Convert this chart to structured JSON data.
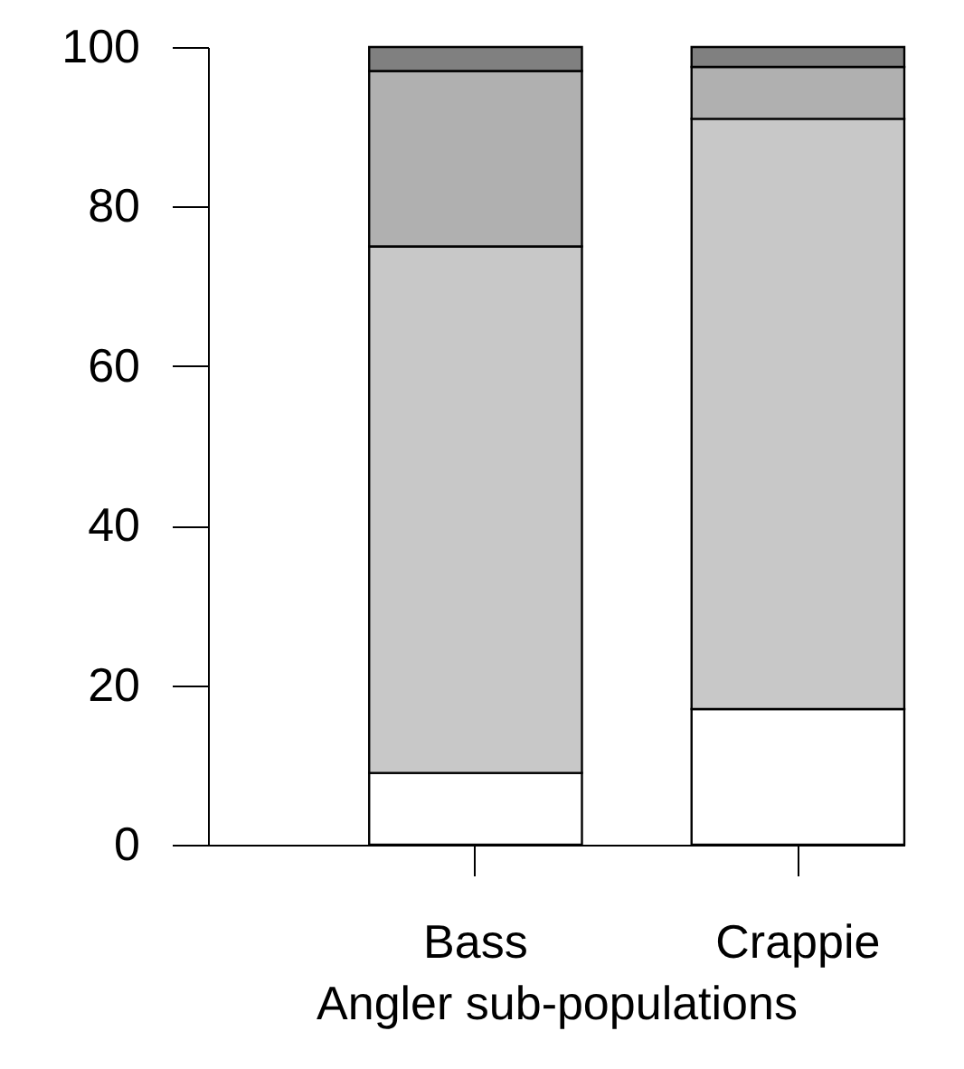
{
  "chart_data": {
    "type": "bar",
    "stacked": true,
    "xlabel": "Angler sub-populations",
    "categories": [
      "Bass",
      "Crappie"
    ],
    "series": [
      {
        "color": "#ffffff",
        "values": [
          9,
          17
        ]
      },
      {
        "color": "#c8c8c8",
        "values": [
          66,
          74
        ]
      },
      {
        "color": "#b0b0b0",
        "values": [
          22,
          6.5
        ]
      },
      {
        "color": "#808080",
        "values": [
          3,
          2.5
        ]
      }
    ],
    "ylim": [
      0,
      100
    ],
    "yticks": [
      0,
      20,
      40,
      60,
      80,
      100
    ],
    "grid": false,
    "legend": false
  }
}
